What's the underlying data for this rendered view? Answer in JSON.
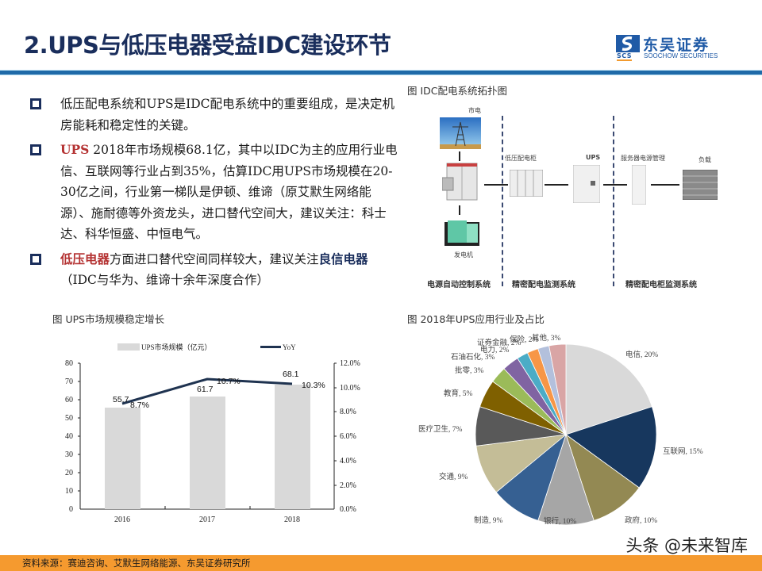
{
  "header": {
    "title": "2.UPS与低压电器受益IDC建设环节",
    "logo_cn": "东吴证券",
    "logo_en": "SOOCHOW SECURITIES",
    "logo_abbr": "SCS"
  },
  "bullets": [
    {
      "plain": "低压配电系统和UPS是IDC配电系统中的重要组成，是决定机房能耗和稳定性的关键。"
    },
    {
      "highlight": "UPS",
      "plain": " 2018年市场规模68.1亿，其中以IDC为主的应用行业电信、互联网等行业占到35%，估算IDC用UPS市场规模在20-30亿之间，行业第一梯队是伊顿、维谛（原艾默生网络能源）、施耐德等外资龙头，进口替代空间大，建议关注：科士达、科华恒盛、中恒电气。"
    },
    {
      "highlight": "低压电器",
      "plain": "方面进口替代空间同样较大，建议关注",
      "emphasis": "良信电器",
      "tail": "（IDC与华为、维谛十余年深度合作）"
    }
  ],
  "topology": {
    "caption": "图  IDC配电系统拓扑图",
    "nodes": {
      "grid": "市电",
      "generator": "发电机",
      "lv_cabinet": "低压配电柜",
      "ups": "UPS",
      "server_power": "服务器电源管理",
      "load": "负载"
    },
    "systems": [
      "电源自动控制系统",
      "精密配电监测系统",
      "精密配电柜监测系统"
    ]
  },
  "chart_data": [
    {
      "type": "bar",
      "title": "图  UPS市场规模稳定增长",
      "categories": [
        "2016",
        "2017",
        "2018"
      ],
      "series": [
        {
          "name": "UPS市场规模（亿元）",
          "type": "bar",
          "axis": "left",
          "values": [
            55.7,
            61.7,
            68.1
          ],
          "color": "#d9d9d9"
        },
        {
          "name": "YoY",
          "type": "line",
          "axis": "right",
          "values": [
            8.7,
            10.7,
            10.3
          ],
          "unit": "%",
          "color": "#1f3350"
        }
      ],
      "y_left": {
        "range": [
          0,
          80
        ],
        "ticks": [
          "0",
          "10",
          "20",
          "30",
          "40",
          "50",
          "60",
          "70",
          "80"
        ]
      },
      "y_right": {
        "range": [
          0,
          12
        ],
        "ticks": [
          "0.0%",
          "2.0%",
          "4.0%",
          "6.0%",
          "8.0%",
          "10.0%",
          "12.0%"
        ]
      },
      "data_labels_bar": [
        "55.7",
        "61.7",
        "68.1"
      ],
      "data_labels_line": [
        "8.7%",
        "10.7%",
        "10.3%"
      ],
      "legend_position": "top",
      "grid": false
    },
    {
      "type": "pie",
      "title": "图  2018年UPS应用行业及占比",
      "slices": [
        {
          "label": "电信",
          "value": 20,
          "text": "电信, 20%",
          "color": "#d9d9d9"
        },
        {
          "label": "互联网",
          "value": 15,
          "text": "互联网, 15%",
          "color": "#17375e"
        },
        {
          "label": "政府",
          "value": 10,
          "text": "政府, 10%",
          "color": "#938953"
        },
        {
          "label": "银行",
          "value": 10,
          "text": "银行, 10%",
          "color": "#a6a6a6"
        },
        {
          "label": "制造",
          "value": 9,
          "text": "制造, 9%",
          "color": "#366092"
        },
        {
          "label": "交通",
          "value": 9,
          "text": "交通, 9%",
          "color": "#c4bd97"
        },
        {
          "label": "医疗卫生",
          "value": 7,
          "text": "医疗卫生, 7%",
          "color": "#595959"
        },
        {
          "label": "教育",
          "value": 5,
          "text": "教育, 5%",
          "color": "#7f6000"
        },
        {
          "label": "批零",
          "value": 3,
          "text": "批零, 3%",
          "color": "#9bbb59"
        },
        {
          "label": "石油石化",
          "value": 3,
          "text": "石油石化, 3%",
          "color": "#8064a2"
        },
        {
          "label": "电力",
          "value": 2,
          "text": "电力, 2%",
          "color": "#4bacc6"
        },
        {
          "label": "证券金融",
          "value": 2,
          "text": "证券金融, 2%",
          "color": "#f79646"
        },
        {
          "label": "保险",
          "value": 2,
          "text": "保险, 2%",
          "color": "#b3c0dc"
        },
        {
          "label": "其他",
          "value": 3,
          "text": "其他, 3%",
          "color": "#d9a5a5"
        }
      ]
    }
  ],
  "footer": {
    "source": "资料来源：赛迪咨询、艾默生网络能源、东吴证券研究所",
    "watermark": "头条 @未来智库"
  }
}
